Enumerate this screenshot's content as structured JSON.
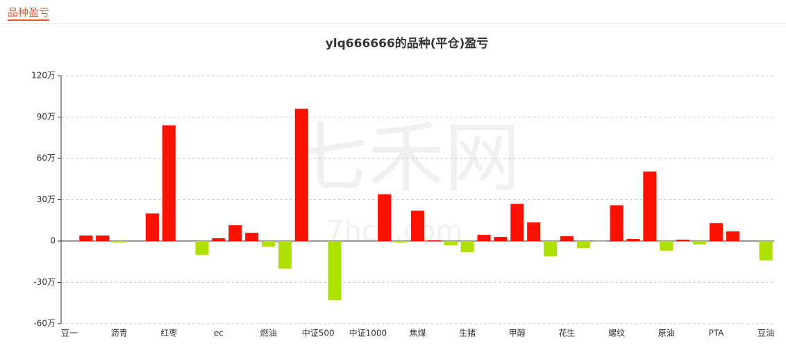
{
  "header": {
    "title": "品种盈亏"
  },
  "watermark": {
    "name": "七禾网",
    "url": "7hcn.com"
  },
  "chart_data": {
    "type": "bar",
    "title": "ylq666666的品种(平仓)盈亏",
    "categories": [
      "豆一",
      null,
      null,
      "沥青",
      null,
      null,
      "红枣",
      null,
      null,
      "ec",
      null,
      null,
      "燃油",
      null,
      null,
      "中证500",
      null,
      null,
      "中证1000",
      null,
      null,
      "焦煤",
      null,
      null,
      "生猪",
      null,
      null,
      "甲醇",
      null,
      null,
      "花生",
      null,
      null,
      "螺纹",
      null,
      null,
      "原油",
      null,
      null,
      "PTA",
      null,
      null,
      "豆油"
    ],
    "values": [
      0,
      4,
      4,
      -1,
      0,
      20,
      84,
      0,
      -10,
      2,
      11.5,
      6,
      -4,
      -20,
      96,
      0,
      -43,
      0,
      0,
      34,
      -1,
      22,
      0.5,
      -3,
      -8,
      4.5,
      3,
      27,
      13.5,
      -11,
      3.5,
      -5,
      -0.5,
      26,
      1.5,
      50.5,
      -7,
      1,
      -2.5,
      13,
      7,
      0,
      -14
    ],
    "color": "#ff1100",
    "negative_color": "#aee000",
    "ylim": [
      -60,
      120
    ],
    "yticks": [
      {
        "value": -60,
        "label": "-60万"
      },
      {
        "value": -30,
        "label": "-30万"
      },
      0,
      {
        "value": 30,
        "label": "30万"
      },
      {
        "value": 60,
        "label": "60万"
      },
      {
        "value": 90,
        "label": "90万"
      },
      {
        "value": 120,
        "label": "120万"
      }
    ],
    "grid": true
  }
}
